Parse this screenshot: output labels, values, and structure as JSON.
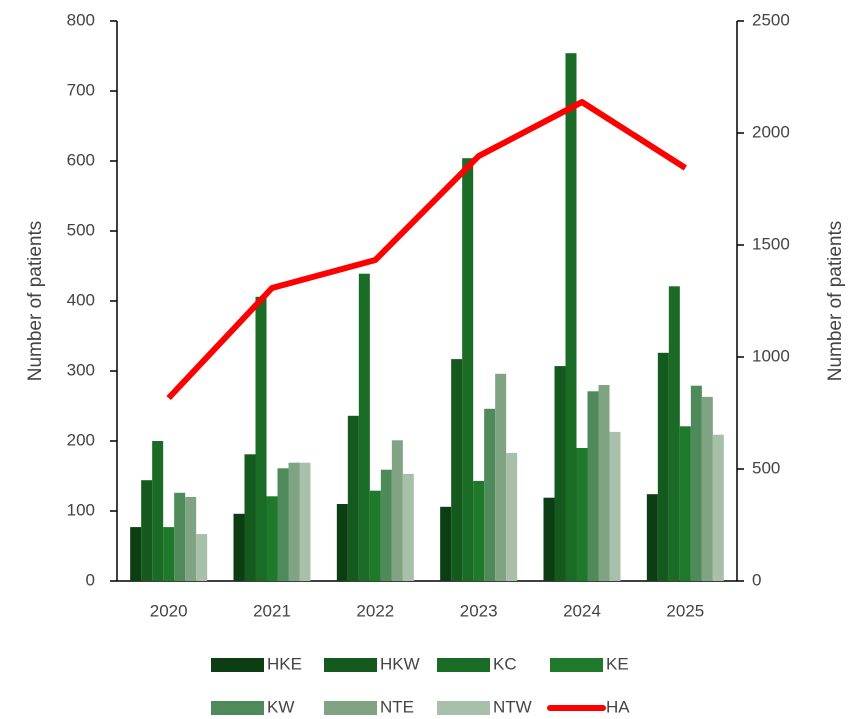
{
  "chart_data": {
    "type": "bar",
    "categories": [
      "2020",
      "2021",
      "2022",
      "2023",
      "2024",
      "2025"
    ],
    "ylabel": "Number of patients",
    "y2label": "Number of patients",
    "ylim": [
      0,
      800
    ],
    "yticks": [
      0,
      100,
      200,
      300,
      400,
      500,
      600,
      700,
      800
    ],
    "y2lim": [
      0,
      2500
    ],
    "y2ticks": [
      0,
      500,
      1000,
      1500,
      2000,
      2500
    ],
    "grid": false,
    "legend": "bottom",
    "series": [
      {
        "name": "HKE",
        "color": "#0d3d12",
        "values": [
          77,
          96,
          110,
          106,
          119,
          124
        ]
      },
      {
        "name": "HKW",
        "color": "#145a1e",
        "values": [
          144,
          181,
          236,
          317,
          307,
          326
        ]
      },
      {
        "name": "KC",
        "color": "#1a6b25",
        "values": [
          200,
          406,
          439,
          604,
          754,
          421
        ]
      },
      {
        "name": "KE",
        "color": "#1e7a2a",
        "values": [
          77,
          121,
          129,
          143,
          190,
          221
        ]
      },
      {
        "name": "KW",
        "color": "#4e8a5a",
        "values": [
          126,
          161,
          159,
          246,
          271,
          279
        ]
      },
      {
        "name": "NTE",
        "color": "#7fa383",
        "values": [
          120,
          169,
          201,
          296,
          280,
          263
        ]
      },
      {
        "name": "NTW",
        "color": "#a8bfa9",
        "values": [
          67,
          169,
          153,
          183,
          213,
          209
        ]
      },
      {
        "name": "HA",
        "color": "#ff0000",
        "type": "line",
        "axis": "y2",
        "values": [
          817,
          1308,
          1433,
          1897,
          2138,
          1844
        ]
      }
    ]
  }
}
